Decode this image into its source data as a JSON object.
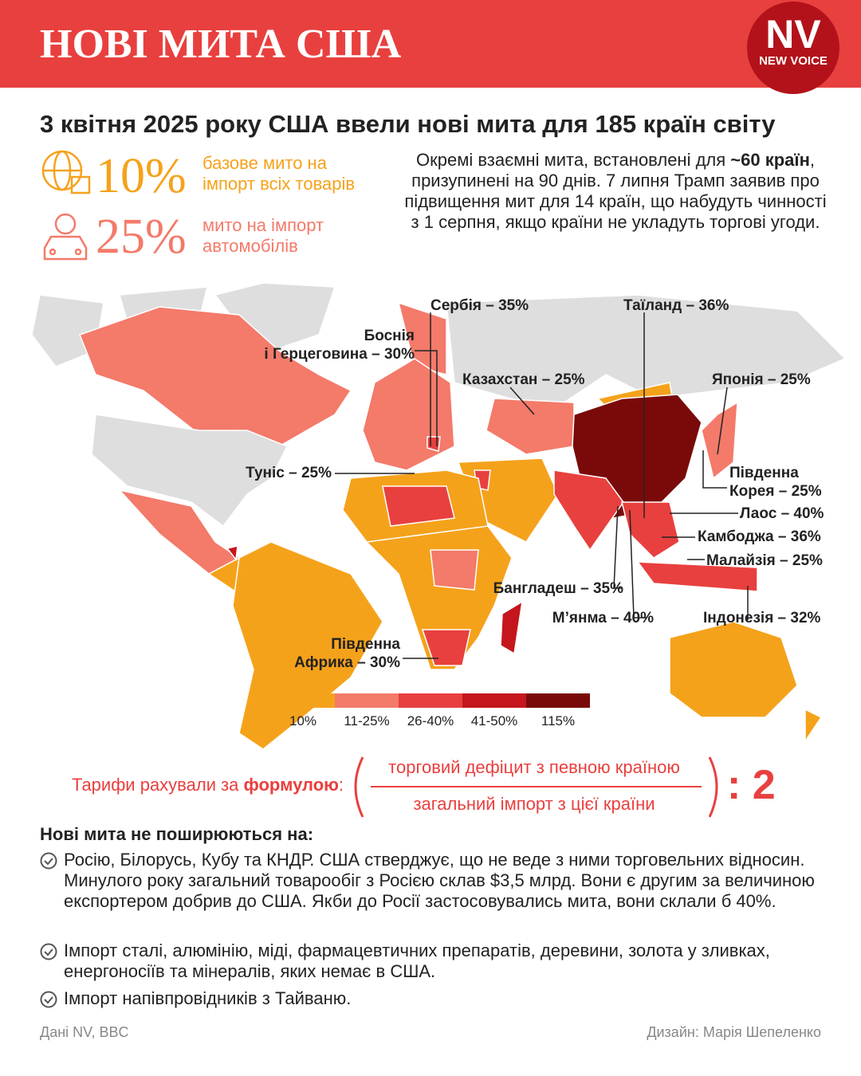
{
  "header": {
    "title": "НОВІ МИТА США",
    "logo": {
      "mark": "NV",
      "name": "NEW VOICE"
    }
  },
  "subtitle": "3 квітня 2025 року США ввели нові мита для 185 країн світу",
  "stats": [
    {
      "value": "10%",
      "text": "базове мито на імпорт всіх товарів"
    },
    {
      "value": "25%",
      "text": "мито на імпорт автомобілів"
    }
  ],
  "note": {
    "before": "Окремі взаємні мита, встановлені для ",
    "bold": "~60 країн",
    "after": ", призупинені на 90 днів. 7 липня Трамп заявив про підвищення мит для 14 країн, що набудуть чинності з 1 серпня, якщо країни не укладуть торгові угоди."
  },
  "map": {
    "labels": [
      "Сербія – 35%",
      "Таїланд – 36%",
      "Боснія\nі Герцеговина – 30%",
      "Казахстан – 25%",
      "Японія – 25%",
      "Туніс – 25%",
      "Південна\nКорея – 25%",
      "Лаос – 40%",
      "Камбоджа – 36%",
      "Малайзія – 25%",
      "Бангладеш – 35%",
      "М’янма – 40%",
      "Індонезія – 32%",
      "Південна\nАфрика – 30%"
    ],
    "legend": [
      {
        "label": "10%",
        "color": "#f5a21b"
      },
      {
        "label": "11-25%",
        "color": "#f47a6a"
      },
      {
        "label": "26-40%",
        "color": "#e8403e"
      },
      {
        "label": "41-50%",
        "color": "#c4161c"
      },
      {
        "label": "115%",
        "color": "#7a0a0a"
      }
    ]
  },
  "formula": {
    "before": "Тарифи рахували за ",
    "bold": "формулою",
    "after": ":",
    "numerator": "торговий дефіцит з певною країною",
    "denominator": "загальний імпорт з цієї країни",
    "divisor": ": 2"
  },
  "exclusions": {
    "title": "Нові мита не поширюються на:",
    "items": [
      "Росію, Білорусь, Кубу та КНДР. США стверджує, що не веде з ними торговельних відносин. Минулого року загальний товарообіг з Росією склав $3,5 млрд. Вони є другим за величиною експортером добрив до США. Якби до Росії застосовувались мита, вони склали б 40%.",
      "Імпорт сталі, алюмінію, міді, фармацевтичних препаратів, деревини, золота у зливках, енергоносіїв та мінералів, яких немає в США.",
      "Імпорт напівпровідників з Тайваню."
    ]
  },
  "footer": {
    "source": "Дані NV, BBC",
    "design": "Дизайн: Марія Шепеленко"
  }
}
